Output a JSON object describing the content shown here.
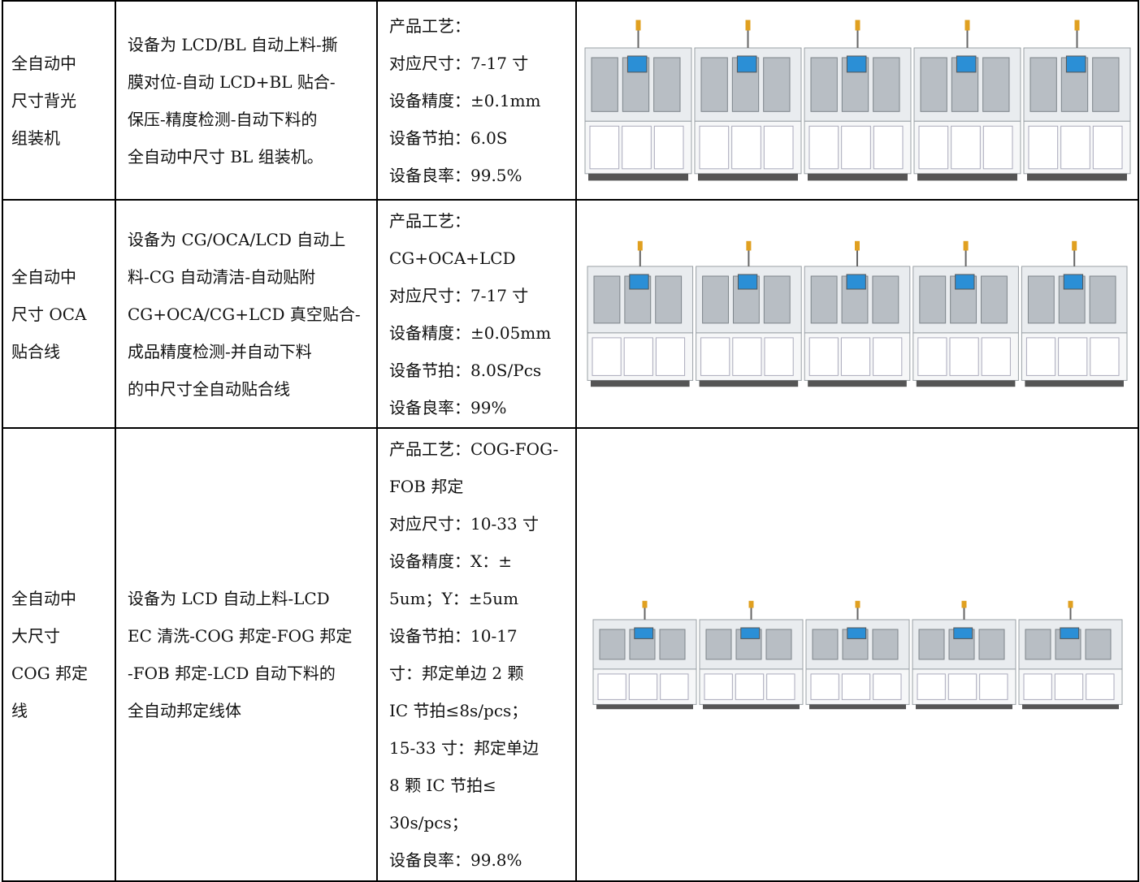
{
  "table": {
    "rows": [
      {
        "name": [
          "全自动中",
          "尺寸背光",
          "组装机"
        ],
        "description": [
          "设备为 LCD/BL 自动上料-撕",
          "膜对位-自动 LCD+BL 贴合-",
          "保压-精度检测-自动下料的",
          "全自动中尺寸 BL 组装机。"
        ],
        "specs": [
          "产品工艺：",
          "对应尺寸：7-17 寸",
          "设备精度：±0.1mm",
          "设备节拍：6.0S",
          "设备良率：99.5%"
        ]
      },
      {
        "name": [
          "全自动中",
          "尺寸 OCA",
          "贴合线"
        ],
        "description": [
          "设备为 CG/OCA/LCD 自动上",
          "料-CG 自动清洁-自动贴附",
          "CG+OCA/CG+LCD 真空贴合-",
          "成品精度检测-并自动下料",
          "的中尺寸全自动贴合线"
        ],
        "specs": [
          "产品工艺：",
          "CG+OCA+LCD",
          "对应尺寸：7-17 寸",
          "设备精度：±0.05mm",
          "设备节拍：8.0S/Pcs",
          "设备良率：99%"
        ]
      },
      {
        "name": [
          "全自动中",
          "大尺寸",
          "COG 邦定",
          "线"
        ],
        "description": [
          "设备为 LCD 自动上料-LCD",
          "EC 清洗-COG 邦定-FOG 邦定",
          "-FOB 邦定-LCD 自动下料的",
          "全自动邦定线体"
        ],
        "specs": [
          "产品工艺：COG-FOG-",
          "FOB 邦定",
          "对应尺寸：10-33 寸",
          "设备精度：X：±",
          "5um；Y：±5um",
          "设备节拍：10-17",
          "寸：邦定单边 2 颗",
          "IC 节拍≤8s/pcs；",
          "15-33 寸：邦定单边",
          "8 颗 IC 节拍≤",
          "30s/pcs；",
          "设备良率：99.8%"
        ]
      }
    ]
  }
}
